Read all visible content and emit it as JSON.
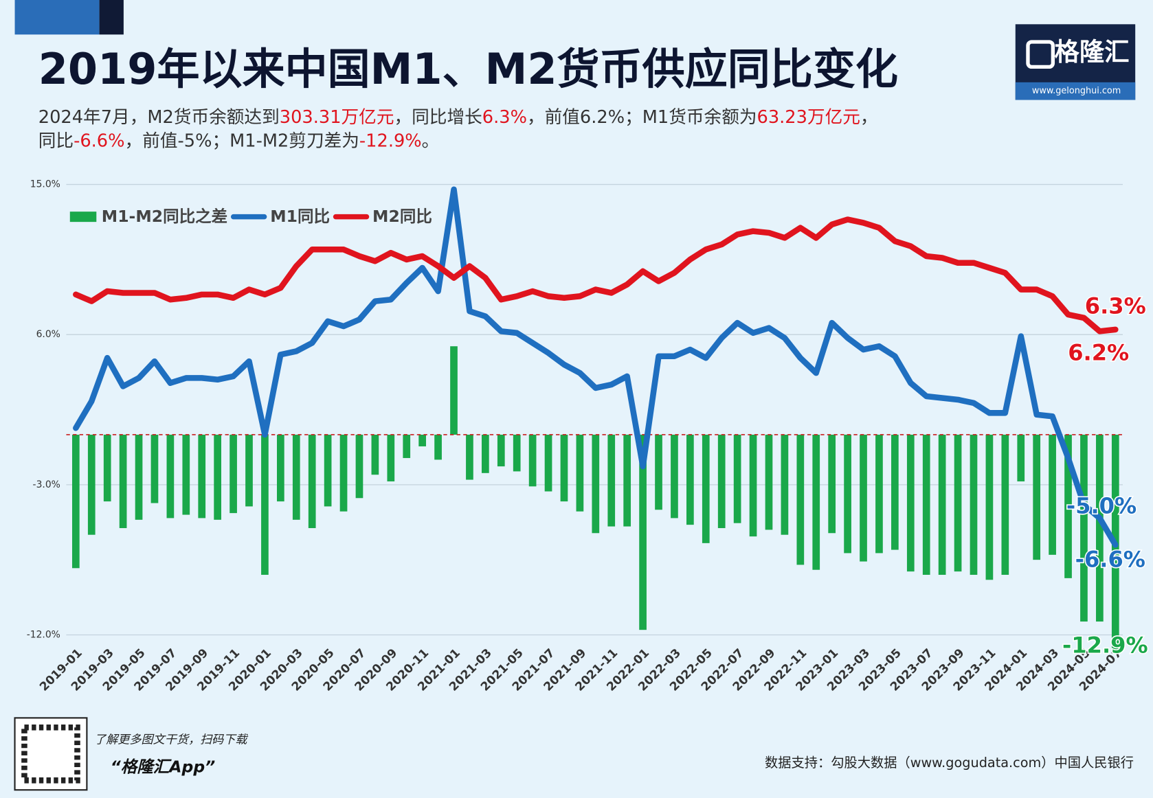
{
  "header": {
    "title": "2019年以来中国M1、M2货币供应同比变化",
    "subtitle": [
      [
        "2024年7月，M2货币余额达到",
        "303.31万亿元",
        "，同比增长",
        "6.3%",
        "，前值6.2%；M1货币余额为",
        "63.23万亿元",
        "，"
      ],
      [
        "同比",
        "-6.6%",
        "，前值-5%；M1-M2剪刀差为",
        "-12.9%",
        "。"
      ]
    ],
    "logo": "格隆汇",
    "logo_url": "www.gelonghui.com"
  },
  "chart_data": {
    "type": "bar-line",
    "categories": [
      "2019-01",
      null,
      "2019-03",
      null,
      "2019-05",
      null,
      "2019-07",
      null,
      "2019-09",
      null,
      "2019-11",
      null,
      "2020-01",
      null,
      "2020-03",
      null,
      "2020-05",
      null,
      "2020-07",
      null,
      "2020-09",
      null,
      "2020-11",
      null,
      "2021-01",
      null,
      "2021-03",
      null,
      "2021-05",
      null,
      "2021-07",
      null,
      "2021-09",
      null,
      "2021-11",
      null,
      "2022-01",
      null,
      "2022-03",
      null,
      "2022-05",
      null,
      "2022-07",
      null,
      "2022-09",
      null,
      "2022-11",
      null,
      "2023-01",
      null,
      "2023-03",
      null,
      "2023-05",
      null,
      "2023-07",
      null,
      "2023-09",
      null,
      "2023-11",
      null,
      "2024-01",
      null,
      "2024-03",
      null,
      "2024-05",
      null,
      "2024-07"
    ],
    "series": [
      {
        "name": "M1-M2同比之差",
        "kind": "bar",
        "color": "#1aa84a",
        "values": [
          -8.0,
          -6.0,
          -4.0,
          -5.6,
          -5.1,
          -4.1,
          -5.0,
          -4.8,
          -5.0,
          -5.1,
          -4.7,
          -4.3,
          -8.4,
          -4.0,
          -5.1,
          -5.6,
          -4.3,
          -4.6,
          -3.8,
          -2.4,
          -2.8,
          -1.4,
          -0.7,
          -1.5,
          5.3,
          -2.7,
          -2.3,
          -1.9,
          -2.2,
          -3.1,
          -3.4,
          -4.0,
          -4.6,
          -5.9,
          -5.5,
          -5.5,
          -11.7,
          -4.5,
          -5.0,
          -5.4,
          -6.5,
          -5.6,
          -5.3,
          -6.1,
          -5.7,
          -6.0,
          -7.8,
          -8.1,
          -5.9,
          -7.1,
          -7.6,
          -7.1,
          -6.9,
          -8.2,
          -8.4,
          -8.4,
          -8.2,
          -8.4,
          -8.7,
          -8.4,
          -2.8,
          -7.5,
          -7.2,
          -8.6,
          -11.2,
          -11.2,
          -12.9
        ]
      },
      {
        "name": "M1同比",
        "kind": "line",
        "color": "#1f6fc0",
        "values": [
          0.4,
          2.0,
          4.6,
          2.9,
          3.4,
          4.4,
          3.1,
          3.4,
          3.4,
          3.3,
          3.5,
          4.4,
          0.0,
          4.8,
          5.0,
          5.5,
          6.8,
          6.5,
          6.9,
          8.0,
          8.1,
          9.1,
          10.0,
          8.6,
          14.7,
          7.4,
          7.1,
          6.2,
          6.1,
          5.5,
          4.9,
          4.2,
          3.7,
          2.8,
          3.0,
          3.5,
          -1.9,
          4.7,
          4.7,
          5.1,
          4.6,
          5.8,
          6.7,
          6.1,
          6.4,
          5.8,
          4.6,
          3.7,
          6.7,
          5.8,
          5.1,
          5.3,
          4.7,
          3.1,
          2.3,
          2.2,
          2.1,
          1.9,
          1.3,
          1.3,
          5.9,
          1.2,
          1.1,
          -1.4,
          -4.2,
          -5.0,
          -6.6
        ]
      },
      {
        "name": "M2同比",
        "kind": "line",
        "color": "#e0141e",
        "values": [
          8.4,
          8.0,
          8.6,
          8.5,
          8.5,
          8.5,
          8.1,
          8.2,
          8.4,
          8.4,
          8.2,
          8.7,
          8.4,
          8.8,
          10.1,
          11.1,
          11.1,
          11.1,
          10.7,
          10.4,
          10.9,
          10.5,
          10.7,
          10.1,
          9.4,
          10.1,
          9.4,
          8.1,
          8.3,
          8.6,
          8.3,
          8.2,
          8.3,
          8.7,
          8.5,
          9.0,
          9.8,
          9.2,
          9.7,
          10.5,
          11.1,
          11.4,
          12.0,
          12.2,
          12.1,
          11.8,
          12.4,
          11.8,
          12.6,
          12.9,
          12.7,
          12.4,
          11.6,
          11.3,
          10.7,
          10.6,
          10.3,
          10.3,
          10.0,
          9.7,
          8.7,
          8.7,
          8.3,
          7.2,
          7.0,
          6.2,
          6.3
        ]
      }
    ],
    "ylim": [
      -12,
      15
    ],
    "yticks": [
      {
        "value": 15,
        "label": "15.0%"
      },
      {
        "value": 6,
        "label": "6.0%"
      },
      {
        "value": -3,
        "label": "-3.0%"
      },
      {
        "value": -12,
        "label": "-12.0%"
      }
    ],
    "grid": true,
    "legend": "top-left",
    "annotations": [
      "6.3%",
      "6.2%",
      "-5.0%",
      "-6.6%",
      "-12.9%"
    ]
  },
  "footer": {
    "qr_text": "了解更多图文干货，扫码下载",
    "app": "“格隆汇App”",
    "source": "数据支持：勾股大数据（www.gogudata.com）中国人民银行"
  }
}
